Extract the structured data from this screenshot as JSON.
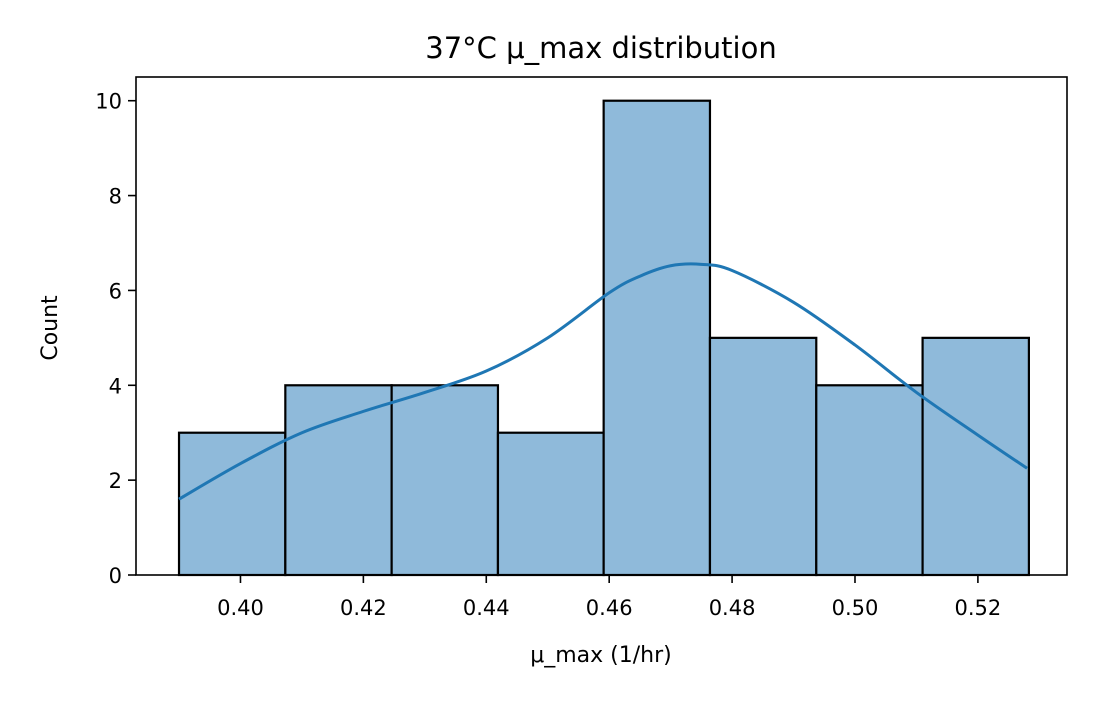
{
  "chart_data": {
    "type": "bar",
    "title": "37°C  μ_max distribution",
    "xlabel": "μ_max (1/hr)",
    "ylabel": "Count",
    "xlim": [
      0.383,
      0.5345
    ],
    "ylim": [
      0,
      10.5
    ],
    "xticks": [
      0.4,
      0.42,
      0.44,
      0.46,
      0.48,
      0.5,
      0.52
    ],
    "xtick_labels": [
      "0.40",
      "0.42",
      "0.44",
      "0.46",
      "0.48",
      "0.50",
      "0.52"
    ],
    "yticks": [
      0,
      2,
      4,
      6,
      8,
      10
    ],
    "ytick_labels": [
      "0",
      "2",
      "4",
      "6",
      "8",
      "10"
    ],
    "bin_edges": [
      0.39,
      0.4073,
      0.4246,
      0.4419,
      0.4591,
      0.4764,
      0.4937,
      0.511,
      0.5283
    ],
    "counts": [
      3,
      4,
      4,
      3,
      10,
      5,
      4,
      5
    ],
    "kde_curve": {
      "x": [
        0.39,
        0.4,
        0.41,
        0.42,
        0.43,
        0.44,
        0.45,
        0.46,
        0.465,
        0.47,
        0.475,
        0.48,
        0.49,
        0.5,
        0.51,
        0.52,
        0.528
      ],
      "y": [
        1.6,
        2.35,
        3.0,
        3.45,
        3.85,
        4.3,
        5.0,
        5.95,
        6.3,
        6.52,
        6.55,
        6.42,
        5.75,
        4.85,
        3.85,
        2.95,
        2.25
      ]
    },
    "grid": false,
    "colors": {
      "bar_fill": "#8fbada",
      "bar_edge": "#000000",
      "kde_line": "#1f77b4"
    }
  }
}
